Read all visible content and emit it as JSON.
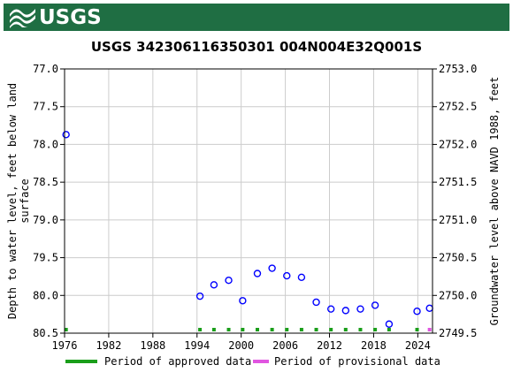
{
  "header": {
    "logo_text": "USGS",
    "logo_colors": {
      "bar": "#1f6e43",
      "glyph": "#ffffff"
    },
    "logo_icon": "usgs-wave-icon"
  },
  "chart_data": {
    "type": "scatter",
    "title": "USGS 342306116350301 004N004E32Q001S",
    "ylabel_left": "Depth to water level, feet below land surface",
    "ylabel_left_lines": [
      "Depth to water level, feet below land",
      "surface"
    ],
    "ylabel_right": "Groundwater level above NAVD 1988, feet",
    "xlim": [
      1976,
      2026
    ],
    "ylim_left": [
      77.0,
      80.5
    ],
    "ylim_left_inverted": true,
    "ylim_right": [
      2749.5,
      2753.0
    ],
    "x_ticks": [
      1976,
      1982,
      1988,
      1994,
      2000,
      2006,
      2012,
      2018,
      2024
    ],
    "x_tick_labels": [
      "1976",
      "1982",
      "1988",
      "1994",
      "2000",
      "2006",
      "2012",
      "2018",
      "2024"
    ],
    "y_left_ticks": [
      77.0,
      77.5,
      78.0,
      78.5,
      79.0,
      79.5,
      80.0,
      80.5
    ],
    "y_left_tick_labels": [
      "77.0",
      "77.5",
      "78.0",
      "78.5",
      "79.0",
      "79.5",
      "80.0",
      "80.5"
    ],
    "y_right_ticks": [
      2753.0,
      2752.5,
      2752.0,
      2751.5,
      2751.0,
      2750.5,
      2750.0,
      2749.5
    ],
    "y_right_tick_labels": [
      "2753.0",
      "2752.5",
      "2752.0",
      "2751.5",
      "2751.0",
      "2750.5",
      "2750.0",
      "2749.5"
    ],
    "grid": true,
    "series": [
      {
        "color": "#0000ff",
        "marker": "open-circle",
        "x": [
          1976.2,
          1994.4,
          1996.3,
          1998.3,
          2000.2,
          2002.2,
          2004.2,
          2006.2,
          2008.2,
          2010.2,
          2012.2,
          2014.2,
          2016.2,
          2018.2,
          2020.1,
          2023.9,
          2025.6
        ],
        "y": [
          77.87,
          80.01,
          79.86,
          79.8,
          80.07,
          79.71,
          79.64,
          79.74,
          79.76,
          80.09,
          80.18,
          80.2,
          80.18,
          80.13,
          80.38,
          80.21,
          80.17
        ]
      }
    ],
    "approved_period_marks_x": [
      1976.2,
      1994.4,
      1996.3,
      1998.3,
      2000.2,
      2002.2,
      2004.2,
      2006.2,
      2008.2,
      2010.2,
      2012.2,
      2014.2,
      2016.2,
      2018.2,
      2020.1,
      2023.9
    ],
    "provisional_period_marks_x": [
      2025.6
    ],
    "legend": {
      "placement": "bottom",
      "items": [
        {
          "label": "Period of approved data",
          "color": "#1a9e1a"
        },
        {
          "label": "Period of provisional data",
          "color": "#e055e0"
        }
      ]
    },
    "colors": {
      "grid": "#cccccc",
      "frame": "#000000",
      "points": "#0000ff"
    }
  }
}
